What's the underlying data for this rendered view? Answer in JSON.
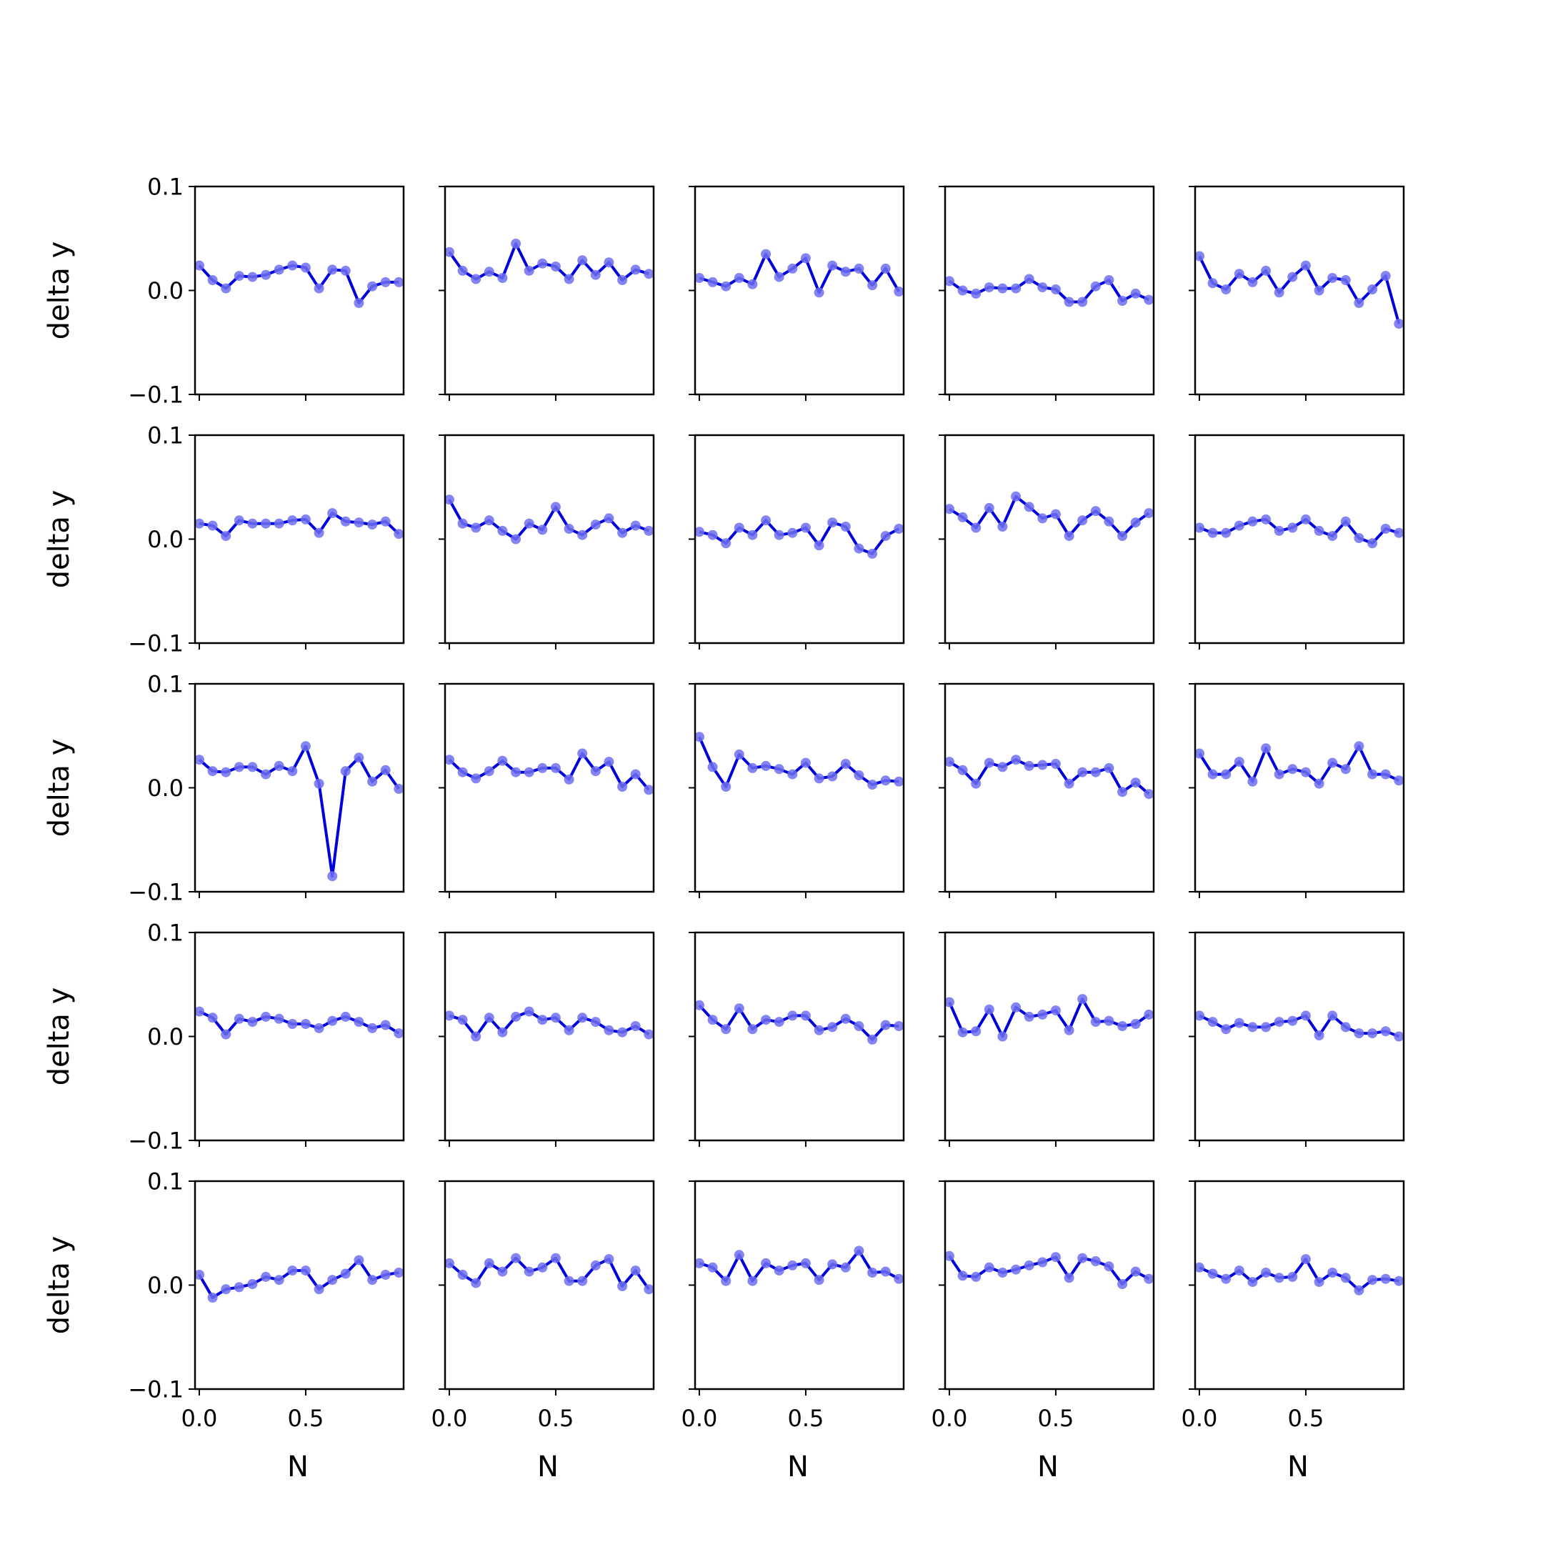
{
  "chart_data": {
    "type": "line",
    "layout": "5x5 grid of small multiples, shared x and y axes",
    "xlabel": "N",
    "ylabel": "delta y",
    "ylim": [
      -0.1,
      0.1
    ],
    "xlim": [
      -0.02,
      0.96
    ],
    "yticks": [
      -0.1,
      0.0,
      0.1
    ],
    "ytick_labels": [
      "−0.1",
      "0.0",
      "0.1"
    ],
    "xticks": [
      0.0,
      0.5
    ],
    "xtick_labels": [
      "0.0",
      "0.5"
    ],
    "grid": false,
    "color": "#0000dd",
    "marker_color": "#6f6ff0",
    "x": [
      0.0,
      0.0625,
      0.125,
      0.1875,
      0.25,
      0.3125,
      0.375,
      0.4375,
      0.5,
      0.5625,
      0.625,
      0.6875,
      0.75,
      0.8125,
      0.875,
      0.9375
    ],
    "panels": [
      [
        0.024,
        0.01,
        0.002,
        0.014,
        0.013,
        0.015,
        0.02,
        0.024,
        0.022,
        0.002,
        0.02,
        0.019,
        -0.012,
        0.004,
        0.008,
        0.008
      ],
      [
        0.037,
        0.019,
        0.011,
        0.018,
        0.012,
        0.045,
        0.019,
        0.026,
        0.023,
        0.011,
        0.029,
        0.015,
        0.027,
        0.01,
        0.02,
        0.016
      ],
      [
        0.012,
        0.008,
        0.004,
        0.012,
        0.006,
        0.035,
        0.013,
        0.021,
        0.031,
        -0.002,
        0.024,
        0.018,
        0.021,
        0.005,
        0.021,
        -0.001
      ],
      [
        0.009,
        0.0,
        -0.003,
        0.003,
        0.002,
        0.002,
        0.011,
        0.003,
        0.001,
        -0.011,
        -0.011,
        0.004,
        0.01,
        -0.01,
        -0.003,
        -0.009
      ],
      [
        0.033,
        0.007,
        0.001,
        0.016,
        0.008,
        0.019,
        -0.002,
        0.013,
        0.024,
        0.0,
        0.012,
        0.01,
        -0.012,
        0.001,
        0.014,
        -0.032
      ],
      [
        0.015,
        0.013,
        0.003,
        0.018,
        0.015,
        0.015,
        0.015,
        0.018,
        0.019,
        0.006,
        0.025,
        0.017,
        0.016,
        0.014,
        0.017,
        0.005
      ],
      [
        0.038,
        0.015,
        0.011,
        0.018,
        0.008,
        0.0,
        0.015,
        0.009,
        0.031,
        0.01,
        0.004,
        0.014,
        0.02,
        0.006,
        0.013,
        0.008
      ],
      [
        0.007,
        0.004,
        -0.004,
        0.011,
        0.004,
        0.018,
        0.004,
        0.006,
        0.011,
        -0.006,
        0.016,
        0.012,
        -0.009,
        -0.014,
        0.003,
        0.01
      ],
      [
        0.029,
        0.021,
        0.011,
        0.03,
        0.012,
        0.041,
        0.031,
        0.02,
        0.024,
        0.003,
        0.018,
        0.027,
        0.017,
        0.003,
        0.016,
        0.025
      ],
      [
        0.011,
        0.006,
        0.006,
        0.013,
        0.017,
        0.019,
        0.008,
        0.011,
        0.019,
        0.008,
        0.003,
        0.017,
        0.001,
        -0.004,
        0.01,
        0.006
      ],
      [
        0.027,
        0.016,
        0.015,
        0.02,
        0.02,
        0.013,
        0.021,
        0.016,
        0.04,
        0.004,
        -0.085,
        0.016,
        0.029,
        0.006,
        0.017,
        -0.001
      ],
      [
        0.027,
        0.015,
        0.009,
        0.016,
        0.026,
        0.015,
        0.015,
        0.019,
        0.019,
        0.008,
        0.033,
        0.016,
        0.025,
        0.001,
        0.013,
        -0.002
      ],
      [
        0.049,
        0.02,
        0.001,
        0.032,
        0.019,
        0.021,
        0.018,
        0.013,
        0.024,
        0.009,
        0.011,
        0.023,
        0.012,
        0.003,
        0.007,
        0.006
      ],
      [
        0.025,
        0.017,
        0.004,
        0.024,
        0.02,
        0.027,
        0.021,
        0.022,
        0.023,
        0.004,
        0.015,
        0.015,
        0.019,
        -0.004,
        0.005,
        -0.006
      ],
      [
        0.033,
        0.013,
        0.013,
        0.025,
        0.006,
        0.038,
        0.013,
        0.018,
        0.015,
        0.004,
        0.024,
        0.018,
        0.04,
        0.013,
        0.013,
        0.007
      ],
      [
        0.024,
        0.018,
        0.002,
        0.017,
        0.014,
        0.019,
        0.017,
        0.012,
        0.012,
        0.008,
        0.015,
        0.019,
        0.014,
        0.008,
        0.011,
        0.003
      ],
      [
        0.02,
        0.016,
        0.0,
        0.018,
        0.004,
        0.019,
        0.024,
        0.016,
        0.018,
        0.006,
        0.018,
        0.014,
        0.006,
        0.004,
        0.01,
        0.002
      ],
      [
        0.03,
        0.016,
        0.007,
        0.027,
        0.007,
        0.016,
        0.014,
        0.02,
        0.02,
        0.006,
        0.009,
        0.017,
        0.01,
        -0.003,
        0.011,
        0.01
      ],
      [
        0.033,
        0.004,
        0.005,
        0.026,
        0.0,
        0.028,
        0.019,
        0.021,
        0.025,
        0.006,
        0.036,
        0.014,
        0.015,
        0.01,
        0.012,
        0.021
      ],
      [
        0.02,
        0.014,
        0.007,
        0.013,
        0.009,
        0.009,
        0.014,
        0.015,
        0.02,
        0.001,
        0.02,
        0.009,
        0.003,
        0.003,
        0.005,
        0.0
      ],
      [
        0.01,
        -0.012,
        -0.004,
        -0.002,
        0.001,
        0.008,
        0.005,
        0.014,
        0.014,
        -0.004,
        0.005,
        0.011,
        0.024,
        0.005,
        0.01,
        0.012
      ],
      [
        0.021,
        0.01,
        0.002,
        0.021,
        0.013,
        0.026,
        0.013,
        0.017,
        0.026,
        0.004,
        0.004,
        0.019,
        0.025,
        -0.001,
        0.014,
        -0.004
      ],
      [
        0.021,
        0.017,
        0.004,
        0.029,
        0.004,
        0.021,
        0.014,
        0.019,
        0.021,
        0.005,
        0.02,
        0.017,
        0.033,
        0.012,
        0.013,
        0.006
      ],
      [
        0.028,
        0.009,
        0.008,
        0.017,
        0.012,
        0.015,
        0.019,
        0.022,
        0.027,
        0.007,
        0.026,
        0.023,
        0.018,
        0.001,
        0.013,
        0.006
      ],
      [
        0.017,
        0.011,
        0.006,
        0.014,
        0.003,
        0.012,
        0.007,
        0.008,
        0.025,
        0.003,
        0.012,
        0.007,
        -0.005,
        0.005,
        0.006,
        0.004
      ]
    ]
  }
}
